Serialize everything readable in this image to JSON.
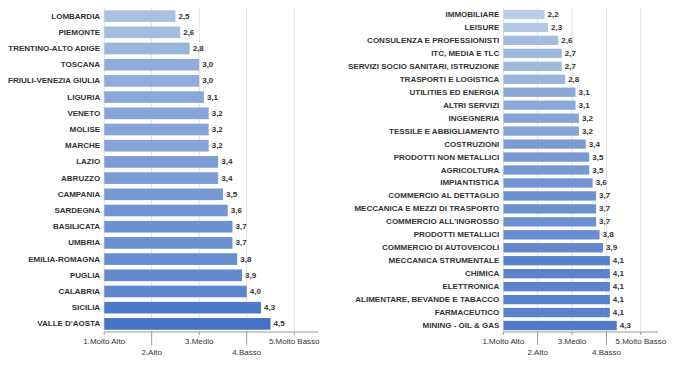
{
  "chart_data": [
    {
      "type": "bar",
      "orientation": "horizontal",
      "grid": true,
      "data_labels": true,
      "categories": [
        "LOMBARDIA",
        "PIEMONTE",
        "TRENTINO-ALTO ADIGE",
        "TOSCANA",
        "FRIULI-VENEZIA GIULIA",
        "LIGURIA",
        "VENETO",
        "MOLISE",
        "MARCHE",
        "LAZIO",
        "ABRUZZO",
        "CAMPANIA",
        "SARDEGNA",
        "BASILICATA",
        "UMBRIA",
        "EMILIA-ROMAGNA",
        "PUGLIA",
        "CALABRIA",
        "SICILIA",
        "VALLE D'AOSTA"
      ],
      "values": [
        2.5,
        2.6,
        2.8,
        3.0,
        3.0,
        3.1,
        3.2,
        3.2,
        3.2,
        3.4,
        3.4,
        3.5,
        3.6,
        3.7,
        3.7,
        3.8,
        3.9,
        4.0,
        4.3,
        4.5
      ],
      "value_labels": [
        "2,5",
        "2,6",
        "2,8",
        "3,0",
        "3,0",
        "3,1",
        "3,2",
        "3,2",
        "3,2",
        "3,4",
        "3,4",
        "3,5",
        "3,6",
        "3,7",
        "3,7",
        "3,8",
        "3,9",
        "4,0",
        "4,3",
        "4,5"
      ],
      "colors": [
        "#a9c0e0",
        "#a4bcde",
        "#9ab5dc",
        "#90add9",
        "#90add9",
        "#8ba9d7",
        "#86a5d6",
        "#86a5d6",
        "#86a5d6",
        "#7b9dd3",
        "#7b9dd3",
        "#7699d2",
        "#7195d1",
        "#6c91cf",
        "#6c91cf",
        "#678dce",
        "#6289cc",
        "#5d86cb",
        "#4e7ac7",
        "#4472c4"
      ],
      "xlim": [
        1,
        5.5
      ],
      "xticks": [
        {
          "value": 1,
          "label": "1.Molto Alto"
        },
        {
          "value": 2,
          "label": "2.Alto"
        },
        {
          "value": 3,
          "label": "3.Medio"
        },
        {
          "value": 4,
          "label": "4.Basso"
        },
        {
          "value": 5,
          "label": "5.Molto Basso"
        }
      ]
    },
    {
      "type": "bar",
      "orientation": "horizontal",
      "grid": true,
      "data_labels": true,
      "categories": [
        "IMMOBILIARE",
        "LEISURE",
        "CONSULENZA E PROFESSIONISTI",
        "ITC, MEDIA E TLC",
        "SERVIZI SOCIO SANITARI, ISTRUZIONE",
        "TRASPORTI E LOGISTICA",
        "UTILITIES ED ENERGIA",
        "ALTRI SERVIZI",
        "INGEGNERIA",
        "TESSILE E ABBIGLIAMENTO",
        "COSTRUZIONI",
        "PRODOTTI NON METALLICI",
        "AGRICOLTURA",
        "IMPIANTISTICA",
        "COMMERCIO AL DETTAGLIO",
        "MECCANICA E MEZZI DI TRASPORTO",
        "COMMERCIO ALL'INGROSSO",
        "PRODOTTI METALLICI",
        "COMMERCIO DI AUTOVEICOLI",
        "MECCANICA STRUMENTALE",
        "CHIMICA",
        "ELETTRONICA",
        "ALIMENTARE, BEVANDE E TABACCO",
        "FARMACEUTICO",
        "MINING - OIL & GAS"
      ],
      "values": [
        2.2,
        2.3,
        2.6,
        2.7,
        2.7,
        2.8,
        3.1,
        3.1,
        3.2,
        3.2,
        3.4,
        3.5,
        3.5,
        3.6,
        3.7,
        3.7,
        3.7,
        3.8,
        3.9,
        4.1,
        4.1,
        4.1,
        4.1,
        4.1,
        4.3
      ],
      "value_labels": [
        "2,2",
        "2,3",
        "2,6",
        "2,7",
        "2,7",
        "2,8",
        "3,1",
        "3,1",
        "3,2",
        "3,2",
        "3,4",
        "3,5",
        "3,5",
        "3,6",
        "3,7",
        "3,7",
        "3,7",
        "3,8",
        "3,9",
        "4,1",
        "4,1",
        "4,1",
        "4,1",
        "4,1",
        "4,3"
      ],
      "colors": [
        "#b8cce4",
        "#b3c8e3",
        "#a4bcde",
        "#9fb8dd",
        "#9fb8dd",
        "#9ab5dc",
        "#8ba9d7",
        "#8ba9d7",
        "#86a5d6",
        "#86a5d6",
        "#7b9dd3",
        "#7699d2",
        "#7699d2",
        "#7195d1",
        "#6c91cf",
        "#6c91cf",
        "#6c91cf",
        "#678dce",
        "#6289cc",
        "#5882ca",
        "#5882ca",
        "#5882ca",
        "#5882ca",
        "#5882ca",
        "#4e7ac7"
      ],
      "xlim": [
        1,
        5.5
      ],
      "xticks": [
        {
          "value": 1,
          "label": "1.Molto Alto"
        },
        {
          "value": 2,
          "label": "2.Alto"
        },
        {
          "value": 3,
          "label": "3.Medio"
        },
        {
          "value": 4,
          "label": "4.Basso"
        },
        {
          "value": 5,
          "label": "5.Molto Basso"
        }
      ]
    }
  ]
}
